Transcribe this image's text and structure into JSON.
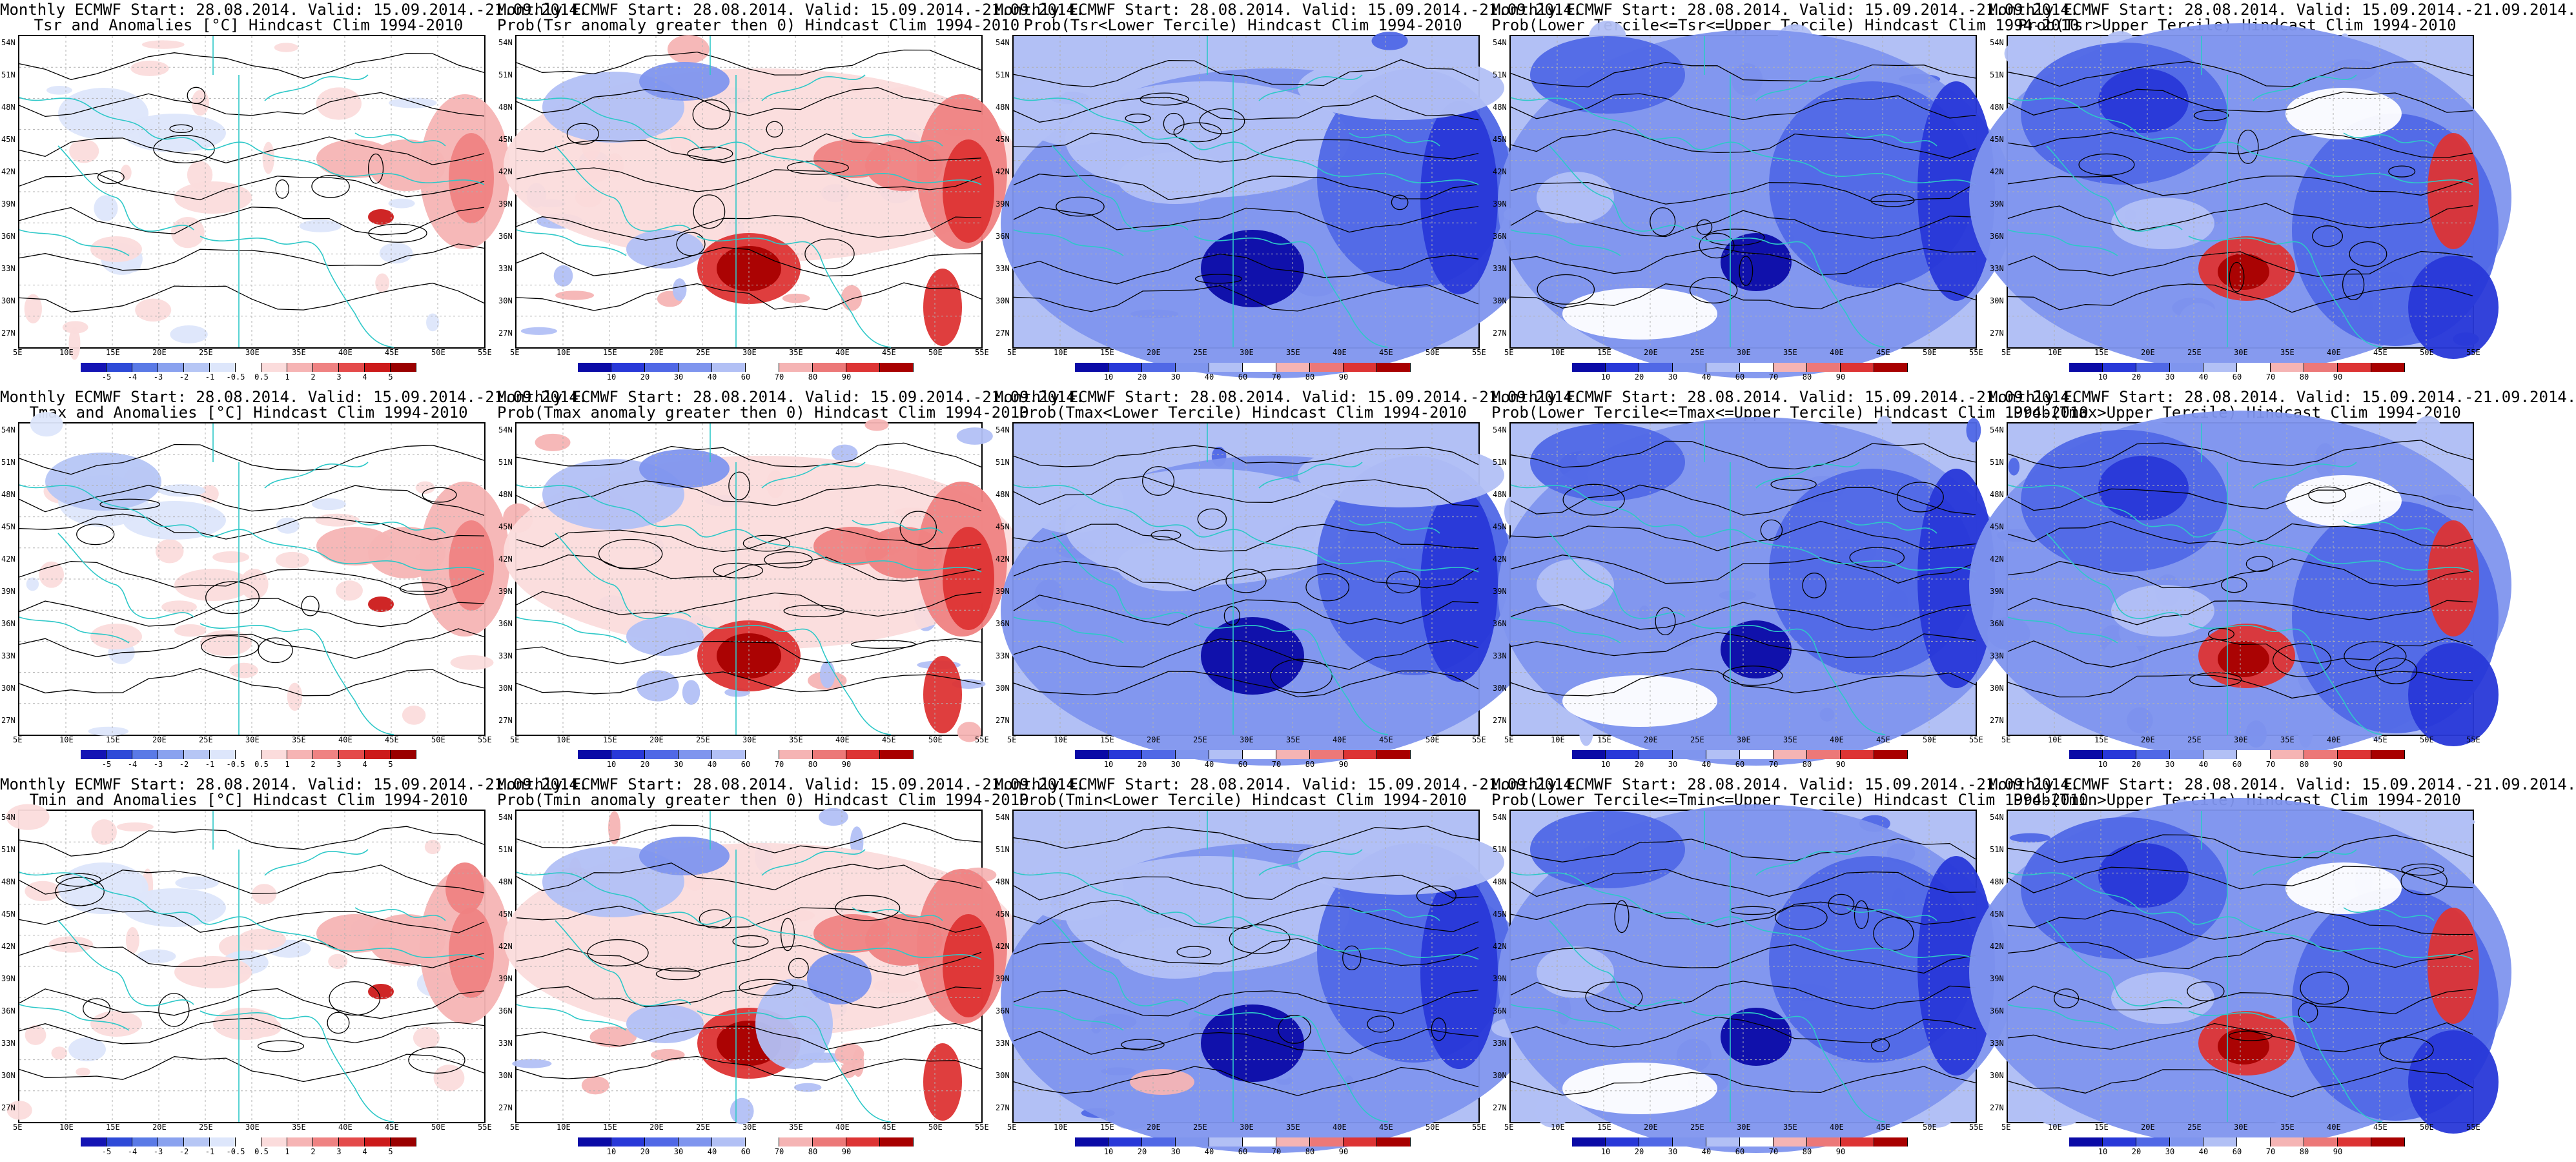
{
  "row_titles": {
    "tsr_anom": "Tsr and Anomalies [°C] Hindcast Clim 1994-2010",
    "tsr_pos": "Prob(Tsr anomaly greater then 0) Hindcast Clim 1994-2010",
    "tsr_low": "Prob(Tsr<Lower Tercile) Hindcast Clim 1994-2010",
    "tsr_mid": "Prob(Lower Tercile<=Tsr<=Upper Tercile) Hindcast Clim 1994-2010",
    "tsr_up": "Prob(Tsr>Upper Tercile) Hindcast Clim 1994-2010",
    "tmax_anom": "Tmax and Anomalies [°C] Hindcast Clim 1994-2010",
    "tmax_pos": "Prob(Tmax anomaly greater then 0) Hindcast Clim 1994-2010",
    "tmax_low": "Prob(Tmax<Lower Tercile) Hindcast Clim 1994-2010",
    "tmax_mid": "Prob(Lower Tercile<=Tmax<=Upper Tercile) Hindcast Clim 1994-2010",
    "tmax_up": "Prob(Tmax>Upper Tercile) Hindcast Clim 1994-2010",
    "tmin_anom": "Tmin and Anomalies [°C] Hindcast Clim 1994-2010",
    "tmin_pos": "Prob(Tmin anomaly greater then 0) Hindcast Clim 1994-2010",
    "tmin_low": "Prob(Tmin<Lower Tercile) Hindcast Clim 1994-2010",
    "tmin_mid": "Prob(Lower Tercile<=Tmin<=Upper Tercile) Hindcast Clim 1994-2010",
    "tmin_up": "Prob(Tmin>Upper Tercile) Hindcast Clim 1994-2010"
  },
  "header": "Monthly ECMWF Start: 28.08.2014. Valid: 15.09.2014.-21.09.2014.",
  "panels": [
    {
      "key": "tsr_anom",
      "title1": "Monthly ECMWF Start: 28.08.2014. Valid: 15.09.2014.-21.09.2014.",
      "title2": "Tsr and Anomalies [°C] Hindcast Clim 1994-2010",
      "kind": "anomaly",
      "field": "t_sfc"
    },
    {
      "key": "tsr_pos",
      "title1": "Monthly ECMWF Start: 28.08.2014. Valid: 15.09.2014.-21.09.2014.",
      "title2": "Prob(Tsr anomaly greater then 0) Hindcast Clim 1994-2010",
      "kind": "prob_pos",
      "field": "t_sfc"
    },
    {
      "key": "tsr_low",
      "title1": "Monthly ECMWF Start: 28.08.2014. Valid: 15.09.2014.-21.09.2014.",
      "title2": "Prob(Tsr<Lower Tercile) Hindcast Clim 1994-2010",
      "kind": "prob_low",
      "field": "t_sfc"
    },
    {
      "key": "tsr_mid",
      "title1": "Monthly ECMWF Start: 28.08.2014. Valid: 15.09.2014.-21.09.2014.",
      "title2": "Prob(Lower Tercile<=Tsr<=Upper Tercile) Hindcast Clim 1994-2010",
      "kind": "prob_mid",
      "field": "t_sfc"
    },
    {
      "key": "tsr_up",
      "title1": "Monthly ECMWF Start: 28.08.2014. Valid: 15.09.2014.-21.09.2014.",
      "title2": "Prob(Tsr>Upper Tercile) Hindcast Clim 1994-2010",
      "kind": "prob_up",
      "field": "t_sfc"
    },
    {
      "key": "tmax_anom",
      "title1": "Monthly ECMWF Start: 28.08.2014. Valid: 15.09.2014.-21.09.2014.",
      "title2": "Tmax and Anomalies [°C] Hindcast Clim 1994-2010",
      "kind": "anomaly",
      "field": "t_max"
    },
    {
      "key": "tmax_pos",
      "title1": "Monthly ECMWF Start: 28.08.2014. Valid: 15.09.2014.-21.09.2014.",
      "title2": "Prob(Tmax anomaly greater then 0) Hindcast Clim 1994-2010",
      "kind": "prob_pos",
      "field": "t_max"
    },
    {
      "key": "tmax_low",
      "title1": "Monthly ECMWF Start: 28.08.2014. Valid: 15.09.2014.-21.09.2014.",
      "title2": "Prob(Tmax<Lower Tercile) Hindcast Clim 1994-2010",
      "kind": "prob_low",
      "field": "t_max"
    },
    {
      "key": "tmax_mid",
      "title1": "Monthly ECMWF Start: 28.08.2014. Valid: 15.09.2014.-21.09.2014.",
      "title2": "Prob(Lower Tercile<=Tmax<=Upper Tercile) Hindcast Clim 1994-2010",
      "kind": "prob_mid",
      "field": "t_max"
    },
    {
      "key": "tmax_up",
      "title1": "Monthly ECMWF Start: 28.08.2014. Valid: 15.09.2014.-21.09.2014.",
      "title2": "Prob(Tmax>Upper Tercile) Hindcast Clim 1994-2010",
      "kind": "prob_up",
      "field": "t_max"
    },
    {
      "key": "tmin_anom",
      "title1": "Monthly ECMWF Start: 28.08.2014. Valid: 15.09.2014.-21.09.2014.",
      "title2": "Tmin and Anomalies [°C] Hindcast Clim 1994-2010",
      "kind": "anomaly",
      "field": "t_min"
    },
    {
      "key": "tmin_pos",
      "title1": "Monthly ECMWF Start: 28.08.2014. Valid: 15.09.2014.-21.09.2014.",
      "title2": "Prob(Tmin anomaly greater then 0) Hindcast Clim 1994-2010",
      "kind": "prob_pos",
      "field": "t_min"
    },
    {
      "key": "tmin_low",
      "title1": "Monthly ECMWF Start: 28.08.2014. Valid: 15.09.2014.-21.09.2014.",
      "title2": "Prob(Tmin<Lower Tercile) Hindcast Clim 1994-2010",
      "kind": "prob_low",
      "field": "t_min"
    },
    {
      "key": "tmin_mid",
      "title1": "Monthly ECMWF Start: 28.08.2014. Valid: 15.09.2014.-21.09.2014.",
      "title2": "Prob(Lower Tercile<=Tmin<=Upper Tercile) Hindcast Clim 1994-2010",
      "kind": "prob_mid",
      "field": "t_min"
    },
    {
      "key": "tmin_up",
      "title1": "Monthly ECMWF Start: 28.08.2014. Valid: 15.09.2014.-21.09.2014.",
      "title2": "Prob(Tmin>Upper Tercile) Hindcast Clim 1994-2010",
      "kind": "prob_up",
      "field": "t_min"
    }
  ],
  "lat_labels": [
    "54N",
    "51N",
    "48N",
    "45N",
    "42N",
    "39N",
    "36N",
    "33N",
    "30N",
    "27N"
  ],
  "lon_labels": [
    "5E",
    "10E",
    "15E",
    "20E",
    "25E",
    "30E",
    "35E",
    "40E",
    "45E",
    "50E",
    "55E"
  ],
  "anomaly_scale": {
    "ticks": [
      "-5",
      "-4",
      "-3",
      "-2",
      "-1",
      "-0.5",
      "0.5",
      "1",
      "2",
      "3",
      "4",
      "5"
    ],
    "colors": [
      "#1414b4",
      "#2e4ad8",
      "#5a7ae6",
      "#8aa2ef",
      "#b6c6f5",
      "#dde6fb",
      "#ffffff",
      "#fbdcdc",
      "#f6b4b4",
      "#ef8282",
      "#e44a4a",
      "#cc1a1a",
      "#9a0000"
    ]
  },
  "prob_scale": {
    "ticks": [
      "10",
      "20",
      "30",
      "40",
      "60",
      "70",
      "80",
      "90"
    ],
    "colors": [
      "#0a0aa6",
      "#2838d8",
      "#5068e6",
      "#7f95ee",
      "#b2c0f5",
      "#ffffff",
      "#f5b4b4",
      "#ec7878",
      "#dd3434",
      "#a80000"
    ]
  },
  "colors": {
    "contour": "#000000",
    "coast": "#2ec8c8",
    "grid": "#b0b0b0"
  }
}
